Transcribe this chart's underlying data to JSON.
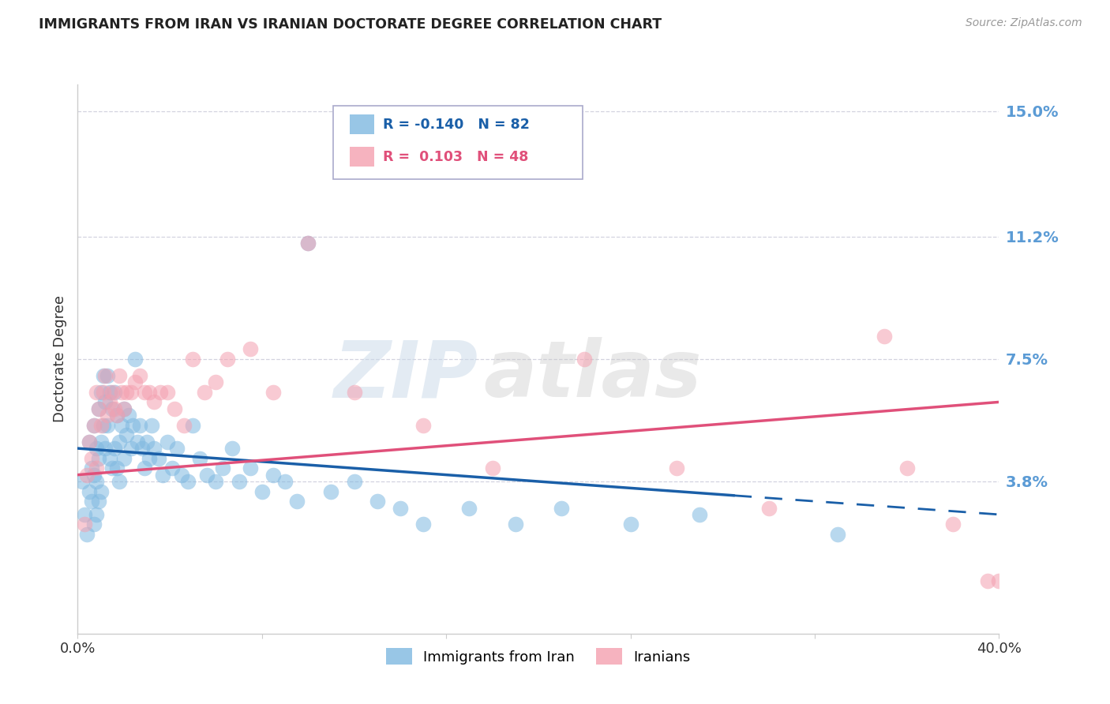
{
  "title": "IMMIGRANTS FROM IRAN VS IRANIAN DOCTORATE DEGREE CORRELATION CHART",
  "source": "Source: ZipAtlas.com",
  "ylabel": "Doctorate Degree",
  "watermark_zip": "ZIP",
  "watermark_atlas": "atlas",
  "xlim": [
    0.0,
    0.4
  ],
  "ylim": [
    -0.008,
    0.158
  ],
  "yticks": [
    0.0,
    0.038,
    0.075,
    0.112,
    0.15
  ],
  "ytick_labels": [
    "",
    "3.8%",
    "7.5%",
    "11.2%",
    "15.0%"
  ],
  "legend_R1": "-0.140",
  "legend_N1": "82",
  "legend_R2": "0.103",
  "legend_N2": "48",
  "legend_label1": "Immigrants from Iran",
  "legend_label2": "Iranians",
  "blue_color": "#7fb8e0",
  "pink_color": "#f4a0b0",
  "trend_blue_color": "#1a5fa8",
  "trend_pink_color": "#e0507a",
  "trend_blue_x0": 0.0,
  "trend_blue_y0": 0.048,
  "trend_blue_x1": 0.4,
  "trend_blue_y1": 0.028,
  "trend_blue_solid_end": 0.285,
  "trend_pink_x0": 0.0,
  "trend_pink_y0": 0.04,
  "trend_pink_x1": 0.4,
  "trend_pink_y1": 0.062,
  "blue_scatter_x": [
    0.002,
    0.003,
    0.004,
    0.005,
    0.005,
    0.006,
    0.006,
    0.007,
    0.007,
    0.007,
    0.008,
    0.008,
    0.008,
    0.009,
    0.009,
    0.009,
    0.01,
    0.01,
    0.01,
    0.011,
    0.011,
    0.012,
    0.012,
    0.013,
    0.013,
    0.014,
    0.014,
    0.015,
    0.015,
    0.016,
    0.016,
    0.017,
    0.017,
    0.018,
    0.018,
    0.019,
    0.02,
    0.02,
    0.021,
    0.022,
    0.023,
    0.024,
    0.025,
    0.026,
    0.027,
    0.028,
    0.029,
    0.03,
    0.031,
    0.032,
    0.033,
    0.035,
    0.037,
    0.039,
    0.041,
    0.043,
    0.045,
    0.048,
    0.05,
    0.053,
    0.056,
    0.06,
    0.063,
    0.067,
    0.07,
    0.075,
    0.08,
    0.085,
    0.09,
    0.095,
    0.1,
    0.11,
    0.12,
    0.13,
    0.14,
    0.15,
    0.17,
    0.19,
    0.21,
    0.24,
    0.27,
    0.33
  ],
  "blue_scatter_y": [
    0.038,
    0.028,
    0.022,
    0.035,
    0.05,
    0.042,
    0.032,
    0.055,
    0.04,
    0.025,
    0.048,
    0.038,
    0.028,
    0.06,
    0.045,
    0.032,
    0.065,
    0.05,
    0.035,
    0.07,
    0.055,
    0.062,
    0.048,
    0.07,
    0.055,
    0.065,
    0.045,
    0.06,
    0.042,
    0.065,
    0.048,
    0.058,
    0.042,
    0.05,
    0.038,
    0.055,
    0.06,
    0.045,
    0.052,
    0.058,
    0.048,
    0.055,
    0.075,
    0.05,
    0.055,
    0.048,
    0.042,
    0.05,
    0.045,
    0.055,
    0.048,
    0.045,
    0.04,
    0.05,
    0.042,
    0.048,
    0.04,
    0.038,
    0.055,
    0.045,
    0.04,
    0.038,
    0.042,
    0.048,
    0.038,
    0.042,
    0.035,
    0.04,
    0.038,
    0.032,
    0.11,
    0.035,
    0.038,
    0.032,
    0.03,
    0.025,
    0.03,
    0.025,
    0.03,
    0.025,
    0.028,
    0.022
  ],
  "pink_scatter_x": [
    0.003,
    0.004,
    0.005,
    0.006,
    0.007,
    0.008,
    0.008,
    0.009,
    0.01,
    0.011,
    0.012,
    0.013,
    0.014,
    0.015,
    0.016,
    0.017,
    0.018,
    0.019,
    0.02,
    0.021,
    0.023,
    0.025,
    0.027,
    0.029,
    0.031,
    0.033,
    0.036,
    0.039,
    0.042,
    0.046,
    0.05,
    0.055,
    0.06,
    0.065,
    0.075,
    0.085,
    0.1,
    0.12,
    0.15,
    0.18,
    0.22,
    0.26,
    0.3,
    0.35,
    0.36,
    0.38,
    0.395,
    0.4
  ],
  "pink_scatter_y": [
    0.025,
    0.04,
    0.05,
    0.045,
    0.055,
    0.042,
    0.065,
    0.06,
    0.055,
    0.065,
    0.07,
    0.058,
    0.062,
    0.065,
    0.06,
    0.058,
    0.07,
    0.065,
    0.06,
    0.065,
    0.065,
    0.068,
    0.07,
    0.065,
    0.065,
    0.062,
    0.065,
    0.065,
    0.06,
    0.055,
    0.075,
    0.065,
    0.068,
    0.075,
    0.078,
    0.065,
    0.11,
    0.065,
    0.055,
    0.042,
    0.075,
    0.042,
    0.03,
    0.082,
    0.042,
    0.025,
    0.008,
    0.008
  ],
  "bg_color": "#ffffff",
  "grid_color": "#c8c8d8",
  "title_color": "#222222",
  "axis_label_color": "#333333",
  "ytick_color": "#5b9bd5",
  "source_color": "#999999"
}
